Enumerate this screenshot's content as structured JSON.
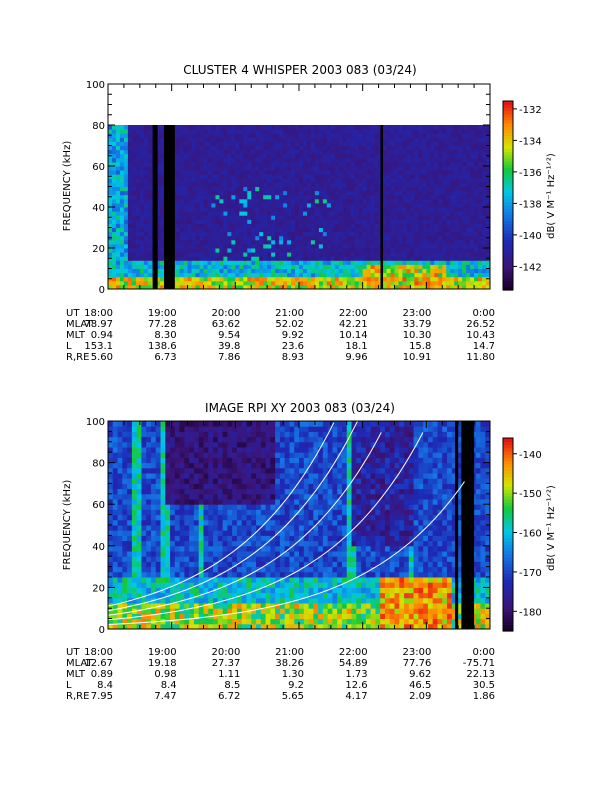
{
  "chart_data": [
    {
      "type": "heatmap",
      "title": "CLUSTER 4 WHISPER 2003 083 (03/24)",
      "ylabel": "FREQUENCY (kHz)",
      "ylim": [
        0,
        100
      ],
      "yticks": [
        "0",
        "20",
        "40",
        "60",
        "80",
        "100"
      ],
      "colorbar": {
        "label": "dB( V M⁻¹ Hz⁻¹ᐟ²)",
        "range": [
          -143.5,
          -131.5
        ],
        "ticks": [
          "-132",
          "-134",
          "-136",
          "-138",
          "-140",
          "-142"
        ]
      },
      "data_ceiling_khz": 80,
      "gaps_hours": [
        [
          18.7,
          18.78
        ],
        [
          18.88,
          19.05
        ],
        [
          22.28,
          22.32
        ]
      ],
      "ephemeris": [
        {
          "label": "UT",
          "values": [
            "18:00",
            "19:00",
            "20:00",
            "21:00",
            "22:00",
            "23:00",
            "0:00"
          ]
        },
        {
          "label": "MLAT",
          "values": [
            "78.97",
            "77.28",
            "63.62",
            "52.02",
            "42.21",
            "33.79",
            "26.52"
          ]
        },
        {
          "label": "MLT",
          "values": [
            "0.94",
            "8.30",
            "9.54",
            "9.92",
            "10.14",
            "10.30",
            "10.43"
          ]
        },
        {
          "label": "L",
          "values": [
            "153.1",
            "138.6",
            "39.8",
            "23.6",
            "18.1",
            "15.8",
            "14.7"
          ]
        },
        {
          "label": "R,RE",
          "values": [
            "5.60",
            "6.73",
            "7.86",
            "8.93",
            "9.96",
            "10.91",
            "11.80"
          ]
        }
      ]
    },
    {
      "type": "heatmap",
      "title": "IMAGE RPI XY 2003 083 (03/24)",
      "ylabel": "FREQUENCY (kHz)",
      "ylim": [
        0,
        100
      ],
      "yticks": [
        "0",
        "20",
        "40",
        "60",
        "80",
        "100"
      ],
      "colorbar": {
        "label": "dB( V M⁻¹ Hz⁻¹ᐟ²)",
        "range": [
          -185,
          -136
        ],
        "ticks": [
          "-140",
          "-150",
          "-160",
          "-170",
          "-180"
        ]
      },
      "gaps_hours": [
        [
          23.45,
          23.5
        ],
        [
          23.55,
          23.75
        ]
      ],
      "ephemeris": [
        {
          "label": "UT",
          "values": [
            "18:00",
            "19:00",
            "20:00",
            "21:00",
            "22:00",
            "23:00",
            "0:00"
          ]
        },
        {
          "label": "MLAT",
          "values": [
            "12.67",
            "19.18",
            "27.37",
            "38.26",
            "54.89",
            "77.76",
            "-75.71"
          ]
        },
        {
          "label": "MLT",
          "values": [
            "0.89",
            "0.98",
            "1.11",
            "1.30",
            "1.73",
            "9.62",
            "22.13"
          ]
        },
        {
          "label": "L",
          "values": [
            "8.4",
            "8.4",
            "8.5",
            "9.2",
            "12.6",
            "46.5",
            "30.5"
          ]
        },
        {
          "label": "R,RE",
          "values": [
            "7.95",
            "7.47",
            "6.72",
            "5.65",
            "4.17",
            "2.09",
            "1.86"
          ]
        }
      ]
    }
  ]
}
